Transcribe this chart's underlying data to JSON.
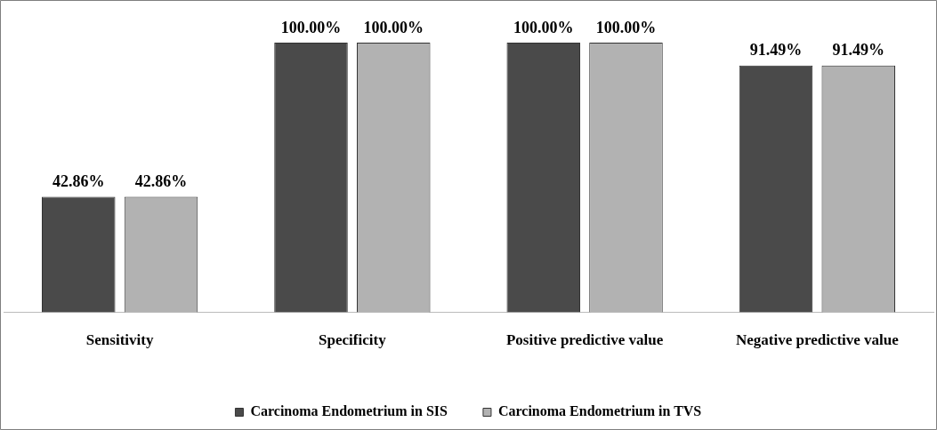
{
  "chart_data": {
    "type": "bar",
    "categories": [
      "Sensitivity",
      "Specificity",
      "Positive predictive value",
      "Negative predictive value"
    ],
    "series": [
      {
        "name": "Carcinoma Endometrium in SIS",
        "color": "#4a4a4a",
        "values": [
          42.86,
          100,
          100,
          91.49
        ],
        "value_labels": [
          "42.86%",
          "100.00%",
          "100.00%",
          "91.49%"
        ]
      },
      {
        "name": "Carcinoma Endometrium in TVS",
        "color": "#b2b2b2",
        "values": [
          42.86,
          100,
          100,
          91.49
        ],
        "value_labels": [
          "42.86%",
          "100.00%",
          "100.00%",
          "91.49%"
        ]
      }
    ],
    "grid": false,
    "legend": "bottom"
  }
}
